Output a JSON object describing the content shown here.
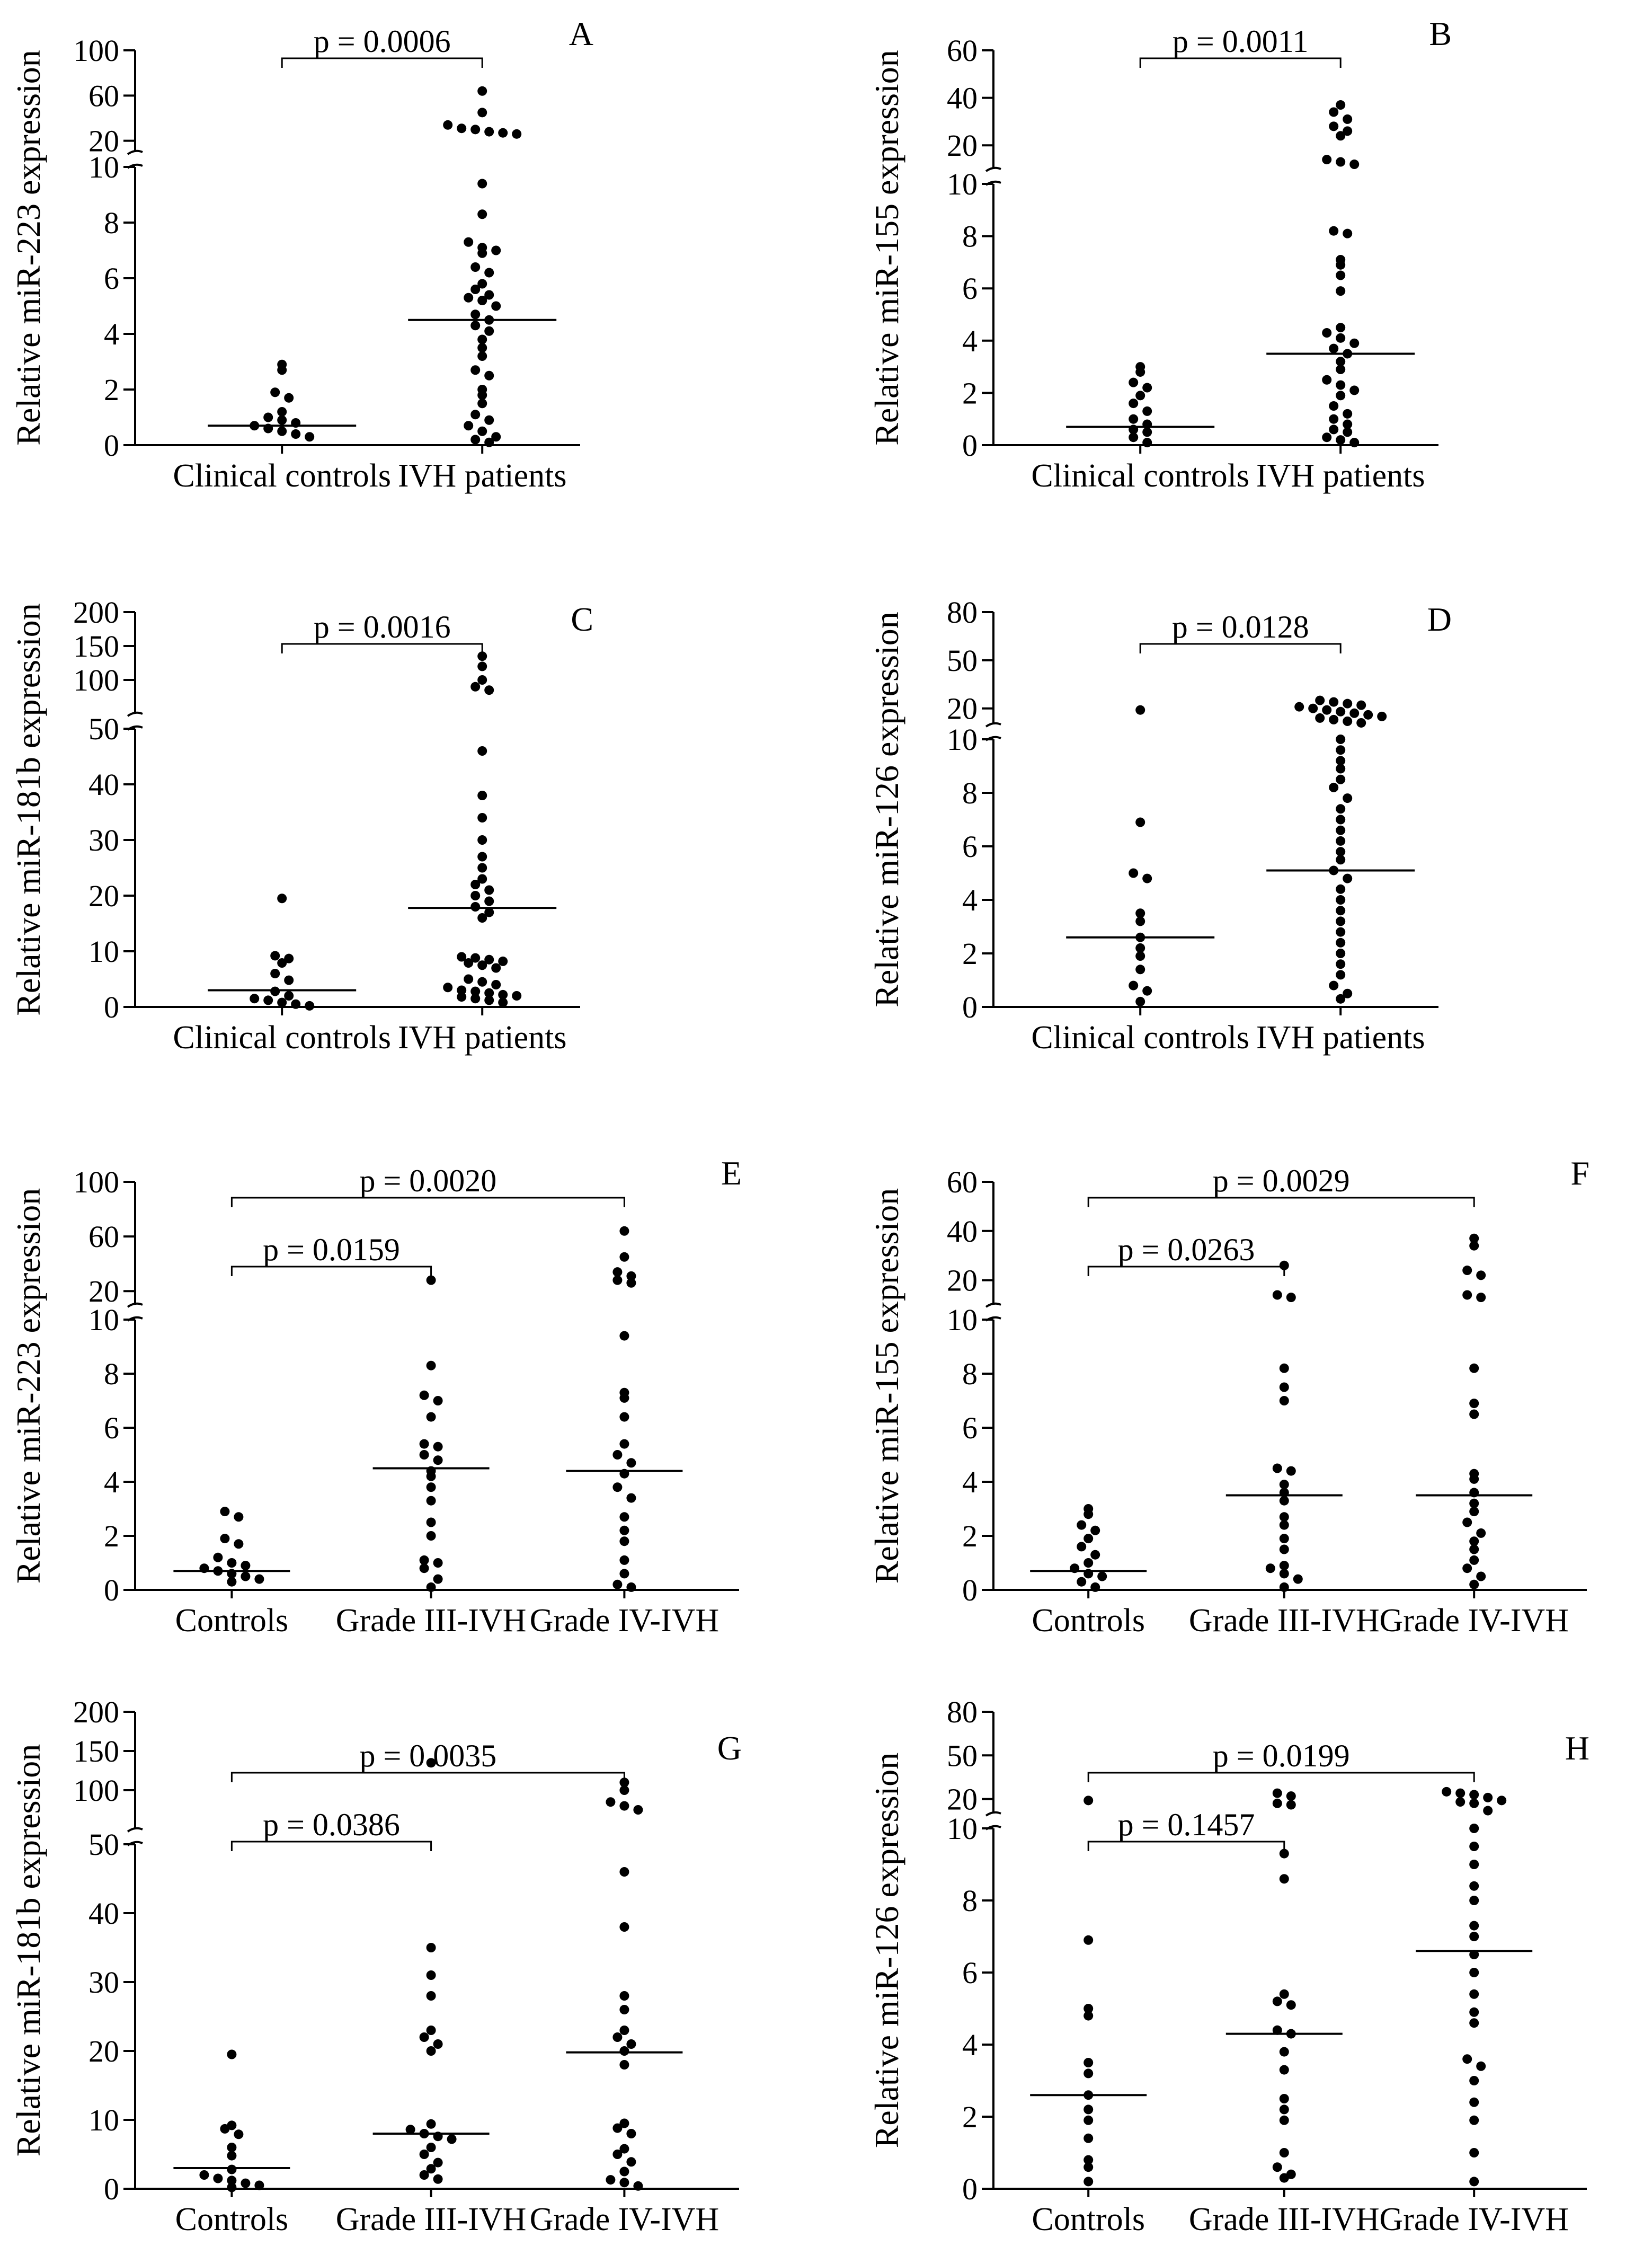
{
  "figure": {
    "panels": [
      {
        "letter": "A",
        "ylabel": "Relative miR-223 expression",
        "categories": [
          "Clinical controls",
          "IVH patients"
        ],
        "lower_ticks": [
          0,
          2,
          4,
          6,
          8,
          10
        ],
        "upper_ticks": [
          20,
          60,
          100
        ],
        "comparisons": [
          {
            "text": "p = 0.0006",
            "p_value": "0.0006",
            "from_group": 0,
            "to_group": 1
          }
        ]
      },
      {
        "letter": "B",
        "ylabel": "Relative miR-155 expression",
        "categories": [
          "Clinical controls",
          "IVH patients"
        ],
        "lower_ticks": [
          0,
          2,
          4,
          6,
          8,
          10
        ],
        "upper_ticks": [
          20,
          40,
          60
        ],
        "comparisons": [
          {
            "text": "p = 0.0011",
            "p_value": "0.0011",
            "from_group": 0,
            "to_group": 1
          }
        ]
      },
      {
        "letter": "C",
        "ylabel": "Relative miR-181b expression",
        "categories": [
          "Clinical controls",
          "IVH patients"
        ],
        "lower_ticks": [
          0,
          10,
          20,
          30,
          40,
          50
        ],
        "upper_ticks": [
          100,
          150,
          200
        ],
        "comparisons": [
          {
            "text": "p = 0.0016",
            "p_value": "0.0016",
            "from_group": 0,
            "to_group": 1
          }
        ]
      },
      {
        "letter": "D",
        "ylabel": "Relative miR-126 expression",
        "categories": [
          "Clinical controls",
          "IVH patients"
        ],
        "lower_ticks": [
          0,
          2,
          4,
          6,
          8,
          10
        ],
        "upper_ticks": [
          20,
          50,
          80
        ],
        "comparisons": [
          {
            "text": "p = 0.0128",
            "p_value": "0.0128",
            "from_group": 0,
            "to_group": 1
          }
        ]
      },
      {
        "letter": "E",
        "ylabel": "Relative miR-223 expression",
        "categories": [
          "Controls",
          "Grade III-IVH",
          "Grade IV-IVH"
        ],
        "lower_ticks": [
          0,
          2,
          4,
          6,
          8,
          10
        ],
        "upper_ticks": [
          20,
          60,
          100
        ],
        "comparisons": [
          {
            "text": "p = 0.0159",
            "p_value": "0.0159",
            "from_group": 0,
            "to_group": 1
          },
          {
            "text": "p = 0.0020",
            "p_value": "0.0020",
            "from_group": 0,
            "to_group": 2
          }
        ]
      },
      {
        "letter": "F",
        "ylabel": "Relative miR-155 expression",
        "categories": [
          "Controls",
          "Grade III-IVH",
          "Grade IV-IVH"
        ],
        "lower_ticks": [
          0,
          2,
          4,
          6,
          8,
          10
        ],
        "upper_ticks": [
          20,
          40,
          60
        ],
        "comparisons": [
          {
            "text": "p = 0.0263",
            "p_value": "0.0263",
            "from_group": 0,
            "to_group": 1
          },
          {
            "text": "p = 0.0029",
            "p_value": "0.0029",
            "from_group": 0,
            "to_group": 2
          }
        ]
      },
      {
        "letter": "G",
        "ylabel": "Relative miR-181b expression",
        "categories": [
          "Controls",
          "Grade III-IVH",
          "Grade IV-IVH"
        ],
        "lower_ticks": [
          0,
          10,
          20,
          30,
          40,
          50
        ],
        "upper_ticks": [
          100,
          150,
          200
        ],
        "comparisons": [
          {
            "text": "p = 0.0386",
            "p_value": "0.0386",
            "from_group": 0,
            "to_group": 1
          },
          {
            "text": "p = 0.0035",
            "p_value": "0.0035",
            "from_group": 0,
            "to_group": 2
          }
        ]
      },
      {
        "letter": "H",
        "ylabel": "Relative miR-126 expression",
        "categories": [
          "Controls",
          "Grade III-IVH",
          "Grade IV-IVH"
        ],
        "lower_ticks": [
          0,
          2,
          4,
          6,
          8,
          10
        ],
        "upper_ticks": [
          20,
          50,
          80
        ],
        "comparisons": [
          {
            "text": "p = 0.1457",
            "p_value": "0.1457",
            "from_group": 0,
            "to_group": 1
          },
          {
            "text": "p = 0.0199",
            "p_value": "0.0199",
            "from_group": 0,
            "to_group": 2
          }
        ]
      }
    ]
  },
  "chart_data": [
    {
      "type": "scatter",
      "panel": "A",
      "title": "",
      "xlabel": "",
      "ylabel": "Relative miR-223 expression",
      "y_axis_break": {
        "lower_range": [
          0,
          10
        ],
        "upper_range": [
          10,
          100
        ]
      },
      "categories": [
        "Clinical controls",
        "IVH patients"
      ],
      "series": [
        {
          "category": "Clinical controls",
          "median": 0.7,
          "values": [
            2.9,
            2.7,
            1.9,
            1.7,
            1.2,
            1.0,
            0.9,
            0.8,
            0.7,
            0.6,
            0.5,
            0.4,
            0.3
          ]
        },
        {
          "category": "IVH patients",
          "median": 4.5,
          "values": [
            64,
            45,
            34,
            31,
            30,
            28,
            27,
            26,
            9.4,
            8.3,
            7.3,
            7.1,
            7.0,
            6.9,
            6.4,
            6.2,
            5.8,
            5.6,
            5.4,
            5.3,
            5.2,
            5.0,
            4.7,
            4.5,
            4.3,
            4.1,
            3.8,
            3.5,
            3.2,
            2.7,
            2.5,
            2.0,
            1.8,
            1.5,
            1.1,
            0.9,
            0.7,
            0.5,
            0.3,
            0.2,
            0.1
          ]
        }
      ]
    },
    {
      "type": "scatter",
      "panel": "B",
      "title": "",
      "xlabel": "",
      "ylabel": "Relative miR-155 expression",
      "y_axis_break": {
        "lower_range": [
          0,
          10
        ],
        "upper_range": [
          10,
          60
        ]
      },
      "categories": [
        "Clinical controls",
        "IVH patients"
      ],
      "series": [
        {
          "category": "Clinical controls",
          "median": 0.7,
          "values": [
            3.0,
            2.8,
            2.4,
            2.2,
            1.9,
            1.6,
            1.3,
            1.0,
            0.8,
            0.6,
            0.5,
            0.3,
            0.1
          ]
        },
        {
          "category": "IVH patients",
          "median": 3.5,
          "values": [
            37,
            34,
            31,
            28,
            26,
            24,
            14,
            13,
            12,
            8.2,
            8.1,
            7.1,
            6.9,
            6.5,
            5.9,
            4.5,
            4.3,
            4.1,
            3.9,
            3.7,
            3.5,
            3.2,
            2.9,
            2.5,
            2.3,
            2.1,
            1.9,
            1.5,
            1.2,
            1.0,
            0.8,
            0.6,
            0.5,
            0.3,
            0.2,
            0.1
          ]
        }
      ]
    },
    {
      "type": "scatter",
      "panel": "C",
      "title": "",
      "xlabel": "",
      "ylabel": "Relative miR-181b expression",
      "y_axis_break": {
        "lower_range": [
          0,
          50
        ],
        "upper_range": [
          50,
          200
        ]
      },
      "categories": [
        "Clinical controls",
        "IVH patients"
      ],
      "series": [
        {
          "category": "Clinical controls",
          "median": 3.0,
          "values": [
            19.5,
            9.2,
            8.7,
            7.9,
            6.0,
            4.8,
            2.8,
            2.0,
            1.5,
            1.2,
            0.8,
            0.5,
            0.2
          ]
        },
        {
          "category": "IVH patients",
          "median": 17.8,
          "values": [
            135,
            120,
            100,
            90,
            85,
            46,
            38,
            34,
            30,
            27,
            25,
            23,
            22,
            21,
            20,
            19,
            18,
            17,
            16,
            9.0,
            8.8,
            8.5,
            8.2,
            7.9,
            7.5,
            7.0,
            5.0,
            4.5,
            4.0,
            3.5,
            3.0,
            2.8,
            2.5,
            2.2,
            2.0,
            1.8,
            1.5,
            1.2,
            0.8
          ]
        }
      ]
    },
    {
      "type": "scatter",
      "panel": "D",
      "title": "",
      "xlabel": "",
      "ylabel": "Relative miR-126 expression",
      "y_axis_break": {
        "lower_range": [
          0,
          10
        ],
        "upper_range": [
          10,
          80
        ]
      },
      "categories": [
        "Clinical controls",
        "IVH patients"
      ],
      "series": [
        {
          "category": "Clinical controls",
          "median": 2.6,
          "values": [
            19,
            6.9,
            5.0,
            4.8,
            3.5,
            3.2,
            2.6,
            2.2,
            1.9,
            1.4,
            0.8,
            0.6,
            0.2
          ]
        },
        {
          "category": "IVH patients",
          "median": 5.1,
          "values": [
            25,
            24,
            23,
            22,
            21,
            20,
            19,
            18,
            17,
            16,
            15,
            14,
            13,
            12,
            11,
            10,
            9.6,
            9.2,
            8.9,
            8.5,
            8.2,
            7.8,
            7.4,
            7.0,
            6.6,
            6.2,
            5.8,
            5.5,
            5.1,
            4.8,
            4.4,
            4.0,
            3.6,
            3.2,
            2.8,
            2.4,
            2.0,
            1.6,
            1.2,
            0.8,
            0.5,
            0.3
          ]
        }
      ]
    },
    {
      "type": "scatter",
      "panel": "E",
      "title": "",
      "xlabel": "",
      "ylabel": "Relative miR-223 expression",
      "y_axis_break": {
        "lower_range": [
          0,
          10
        ],
        "upper_range": [
          10,
          100
        ]
      },
      "categories": [
        "Controls",
        "Grade III-IVH",
        "Grade IV-IVH"
      ],
      "series": [
        {
          "category": "Controls",
          "median": 0.7,
          "values": [
            2.9,
            2.7,
            1.9,
            1.7,
            1.2,
            1.0,
            0.9,
            0.8,
            0.7,
            0.6,
            0.5,
            0.4,
            0.3
          ]
        },
        {
          "category": "Grade III-IVH",
          "median": 4.5,
          "values": [
            28,
            8.3,
            7.2,
            7.0,
            6.4,
            5.4,
            5.3,
            5.0,
            4.8,
            4.4,
            4.2,
            3.8,
            3.3,
            2.5,
            2.0,
            1.1,
            1.0,
            0.8,
            0.4,
            0.1
          ]
        },
        {
          "category": "Grade IV-IVH",
          "median": 4.4,
          "values": [
            64,
            45,
            34,
            31,
            28,
            26,
            9.4,
            7.3,
            7.1,
            6.4,
            5.4,
            5.0,
            4.7,
            4.3,
            3.8,
            3.4,
            2.7,
            2.2,
            1.8,
            1.1,
            0.6,
            0.2,
            0.1
          ]
        }
      ]
    },
    {
      "type": "scatter",
      "panel": "F",
      "title": "",
      "xlabel": "",
      "ylabel": "Relative miR-155 expression",
      "y_axis_break": {
        "lower_range": [
          0,
          10
        ],
        "upper_range": [
          10,
          60
        ]
      },
      "categories": [
        "Controls",
        "Grade III-IVH",
        "Grade IV-IVH"
      ],
      "series": [
        {
          "category": "Controls",
          "median": 0.7,
          "values": [
            3.0,
            2.8,
            2.4,
            2.2,
            1.9,
            1.6,
            1.3,
            1.0,
            0.8,
            0.6,
            0.5,
            0.3,
            0.1
          ]
        },
        {
          "category": "Grade III-IVH",
          "median": 3.5,
          "values": [
            26,
            14,
            13,
            8.2,
            7.5,
            7.0,
            4.5,
            4.4,
            3.9,
            3.6,
            3.3,
            2.7,
            2.4,
            1.9,
            1.5,
            0.9,
            0.8,
            0.6,
            0.4,
            0.1
          ]
        },
        {
          "category": "Grade IV-IVH",
          "median": 3.5,
          "values": [
            37,
            34,
            24,
            22,
            14,
            13,
            8.2,
            6.9,
            6.5,
            4.3,
            4.1,
            3.6,
            3.2,
            2.9,
            2.5,
            2.1,
            1.8,
            1.5,
            1.1,
            0.8,
            0.5,
            0.2
          ]
        }
      ]
    },
    {
      "type": "scatter",
      "panel": "G",
      "title": "",
      "xlabel": "",
      "ylabel": "Relative miR-181b expression",
      "y_axis_break": {
        "lower_range": [
          0,
          50
        ],
        "upper_range": [
          50,
          200
        ]
      },
      "categories": [
        "Controls",
        "Grade III-IVH",
        "Grade IV-IVH"
      ],
      "series": [
        {
          "category": "Controls",
          "median": 3.0,
          "values": [
            19.5,
            9.2,
            8.7,
            7.9,
            6.0,
            4.8,
            2.8,
            2.0,
            1.5,
            1.2,
            0.8,
            0.5,
            0.2
          ]
        },
        {
          "category": "Grade III-IVH",
          "median": 8.0,
          "values": [
            135,
            35,
            31,
            28,
            23,
            22,
            21,
            20,
            9.4,
            8.6,
            8.0,
            7.6,
            7.2,
            6.0,
            5.0,
            3.8,
            2.9,
            2.0,
            1.4
          ]
        },
        {
          "category": "Grade IV-IVH",
          "median": 19.8,
          "values": [
            110,
            100,
            85,
            80,
            75,
            46,
            38,
            28,
            26,
            23,
            22,
            21,
            20,
            18,
            9.5,
            8.8,
            8.0,
            5.8,
            5.0,
            3.9,
            2.5,
            1.3,
            0.9,
            0.4
          ]
        }
      ]
    },
    {
      "type": "scatter",
      "panel": "H",
      "title": "",
      "xlabel": "",
      "ylabel": "Relative miR-126 expression",
      "y_axis_break": {
        "lower_range": [
          0,
          10
        ],
        "upper_range": [
          10,
          80
        ]
      },
      "categories": [
        "Controls",
        "Grade III-IVH",
        "Grade IV-IVH"
      ],
      "series": [
        {
          "category": "Controls",
          "median": 2.6,
          "values": [
            19,
            6.9,
            5.0,
            4.8,
            3.5,
            3.2,
            2.6,
            2.2,
            1.9,
            1.4,
            0.8,
            0.6,
            0.2
          ]
        },
        {
          "category": "Grade III-IVH",
          "median": 4.3,
          "values": [
            24,
            22,
            17,
            16,
            9.3,
            8.6,
            5.4,
            5.2,
            5.1,
            4.4,
            4.3,
            3.8,
            3.3,
            2.5,
            2.2,
            1.9,
            1.0,
            0.6,
            0.4,
            0.3
          ]
        },
        {
          "category": "Grade IV-IVH",
          "median": 6.6,
          "values": [
            25,
            24,
            23,
            21,
            19,
            18,
            17,
            12,
            10.0,
            9.5,
            9.0,
            8.4,
            8.0,
            7.3,
            7.0,
            6.5,
            6.0,
            5.4,
            4.9,
            4.6,
            3.6,
            3.4,
            3.0,
            2.4,
            1.9,
            1.0,
            0.2
          ]
        }
      ]
    }
  ]
}
